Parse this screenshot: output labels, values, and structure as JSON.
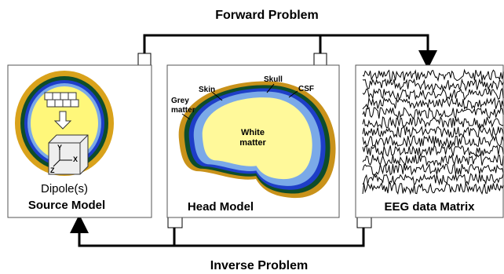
{
  "forward_label": "Forward Problem",
  "inverse_label": "Inverse Problem",
  "source_model": {
    "caption": "Dipole(s)",
    "title": "Source Model",
    "axes": [
      "Y",
      "X",
      "Z"
    ]
  },
  "head_model": {
    "title": "Head Model",
    "skin": "Skin",
    "skull": "Skull",
    "csf": "CSF",
    "grey": [
      "Grey",
      "matter"
    ],
    "white": [
      "White",
      "matter"
    ]
  },
  "eeg": {
    "title": "EEG data Matrix"
  }
}
